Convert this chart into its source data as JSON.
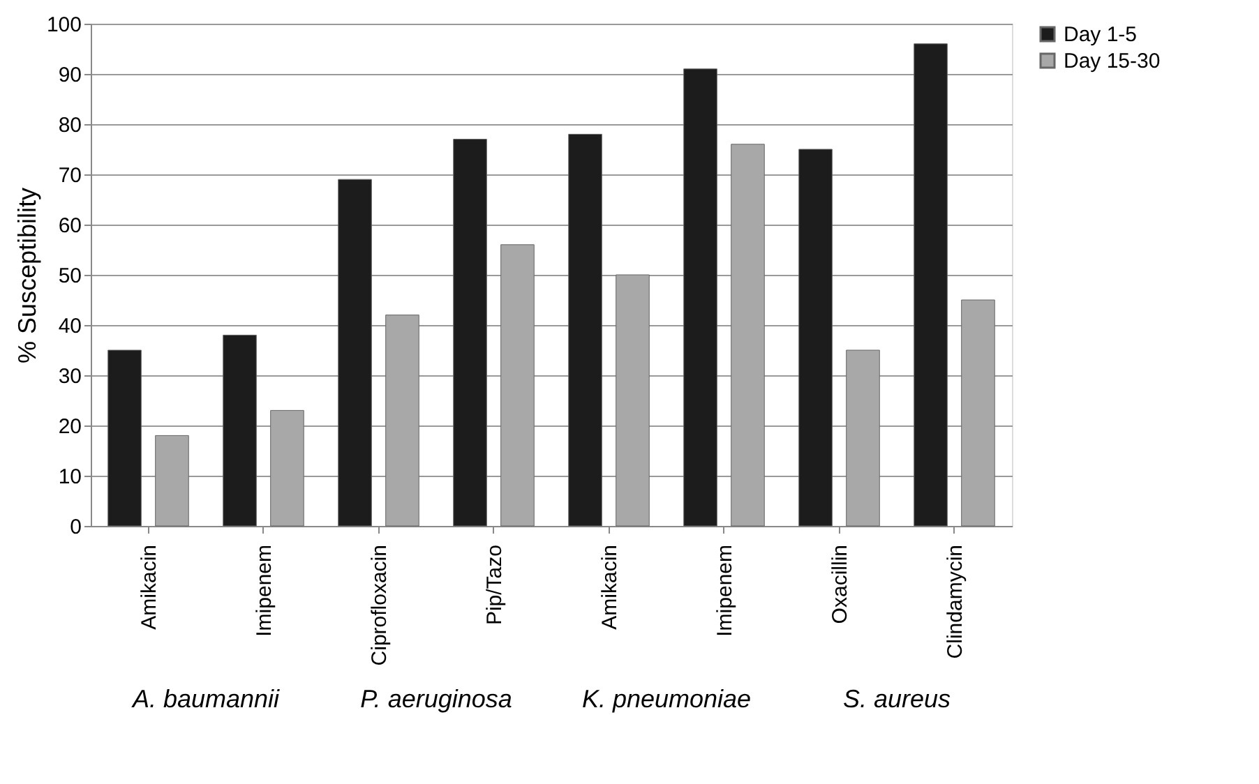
{
  "chart_data": {
    "type": "bar",
    "ylabel": "% Susceptibility",
    "categories": [
      "Amikacin",
      "Imipenem",
      "Ciprofloxacin",
      "Pip/Tazo",
      "Amikacin",
      "Imipenem",
      "Oxacillin",
      "Clindamycin"
    ],
    "series": [
      {
        "name": "Day 1-5",
        "color": "#1c1c1c",
        "values": [
          35,
          38,
          69,
          77,
          78,
          91,
          75,
          96
        ]
      },
      {
        "name": "Day 15-30",
        "color": "#a8a8a8",
        "values": [
          18,
          23,
          42,
          56,
          50,
          76,
          35,
          45
        ]
      }
    ],
    "ylim": [
      0,
      100
    ],
    "yticks": [
      0,
      10,
      20,
      30,
      40,
      50,
      60,
      70,
      80,
      90,
      100
    ],
    "grid": "y",
    "legend": "right",
    "annotations": [
      "A. baumannii",
      "P. aeruginosa",
      "K. pneumoniae",
      "S. aureus"
    ]
  }
}
